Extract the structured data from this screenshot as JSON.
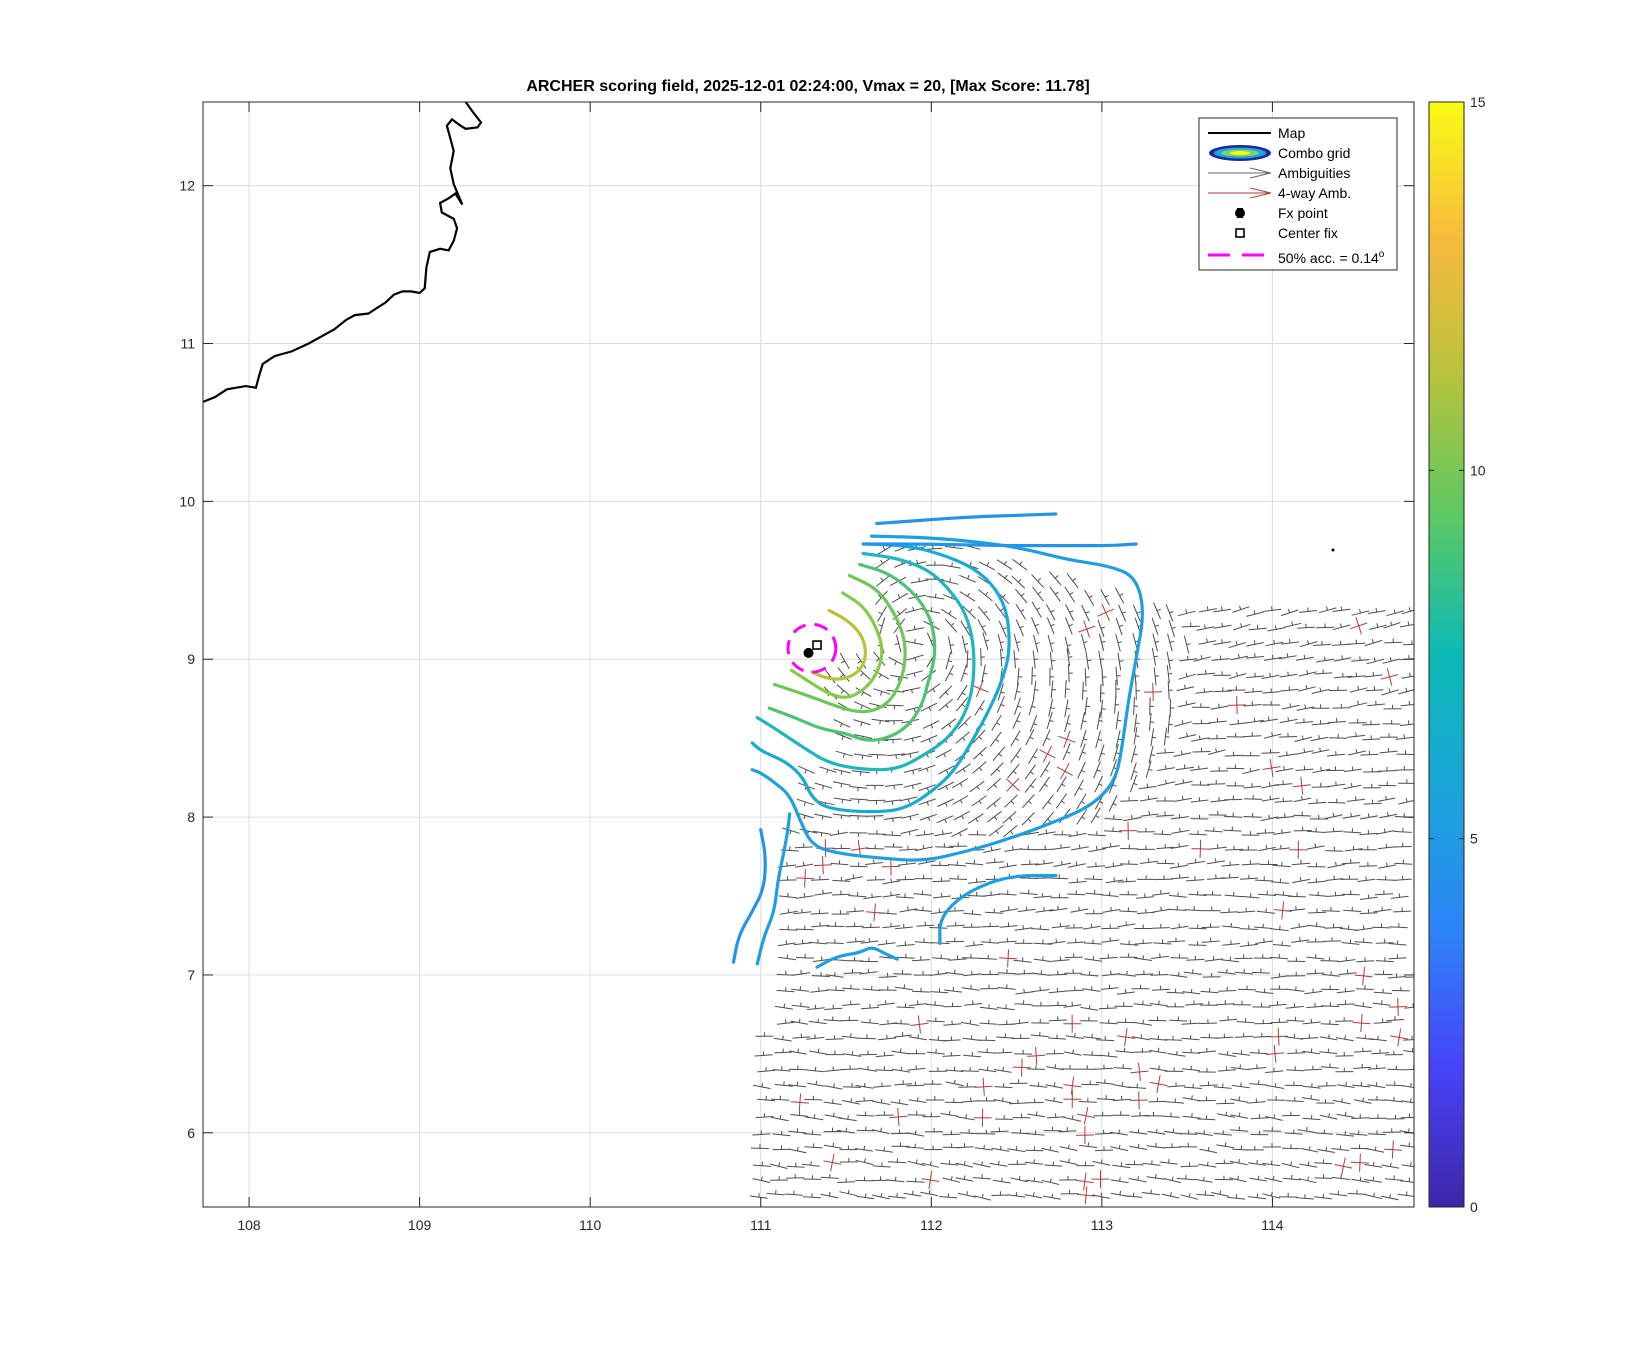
{
  "chart_data": {
    "type": "contour",
    "title": "ARCHER scoring field, 2025-12-01 02:24:00, Vmax = 20, [Max Score: 11.78]",
    "xlabel": "",
    "ylabel": "",
    "xlim": [
      107.73,
      114.83
    ],
    "ylim": [
      5.53,
      12.53
    ],
    "x_ticks": [
      "108",
      "109",
      "110",
      "111",
      "112",
      "113",
      "114"
    ],
    "y_ticks": [
      "6",
      "7",
      "8",
      "9",
      "10",
      "11",
      "12"
    ],
    "grid": true,
    "colorbar": {
      "range": [
        0,
        15
      ],
      "ticks": [
        "0",
        "5",
        "10",
        "15"
      ],
      "colormap": "parula",
      "stops": [
        "#3e26a8",
        "#4743f8",
        "#2c84f9",
        "#1ba5d9",
        "#0bbab5",
        "#5cc863",
        "#b6c33b",
        "#f7ba3d",
        "#f9fb15"
      ]
    },
    "legend": {
      "position": "top-right",
      "entries": [
        "Map",
        "Combo grid",
        "Ambiguities",
        "4-way Amb.",
        "Fx point",
        "Center fix",
        "50% acc. = 0.14",
        "o"
      ]
    },
    "fx_point": [
      111.28,
      9.04
    ],
    "center_fix": [
      111.33,
      9.09
    ],
    "accuracy_circle": {
      "center": [
        111.3,
        9.07
      ],
      "radius_deg": 0.14,
      "color": "#ff00ff"
    },
    "coastline": [
      [
        107.73,
        10.63
      ],
      [
        107.8,
        10.66
      ],
      [
        107.87,
        10.71
      ],
      [
        107.98,
        10.73
      ],
      [
        108.04,
        10.72
      ],
      [
        108.06,
        10.8
      ],
      [
        108.08,
        10.87
      ],
      [
        108.15,
        10.92
      ],
      [
        108.25,
        10.95
      ],
      [
        108.35,
        11.0
      ],
      [
        108.5,
        11.09
      ],
      [
        108.57,
        11.15
      ],
      [
        108.62,
        11.18
      ],
      [
        108.7,
        11.19
      ],
      [
        108.8,
        11.26
      ],
      [
        108.85,
        11.31
      ],
      [
        108.9,
        11.33
      ],
      [
        108.95,
        11.33
      ],
      [
        109.0,
        11.32
      ],
      [
        109.03,
        11.35
      ],
      [
        109.04,
        11.48
      ],
      [
        109.06,
        11.58
      ],
      [
        109.12,
        11.6
      ],
      [
        109.17,
        11.59
      ],
      [
        109.2,
        11.65
      ],
      [
        109.22,
        11.73
      ],
      [
        109.2,
        11.79
      ],
      [
        109.13,
        11.83
      ],
      [
        109.12,
        11.89
      ],
      [
        109.17,
        11.92
      ],
      [
        109.21,
        11.95
      ],
      [
        109.25,
        11.88
      ],
      [
        109.2,
        12.01
      ],
      [
        109.18,
        12.11
      ],
      [
        109.2,
        12.22
      ],
      [
        109.16,
        12.38
      ],
      [
        109.19,
        12.42
      ],
      [
        109.24,
        12.38
      ],
      [
        109.27,
        12.36
      ],
      [
        109.34,
        12.37
      ],
      [
        109.36,
        12.4
      ],
      [
        109.31,
        12.47
      ],
      [
        109.27,
        12.53
      ]
    ],
    "contours": [
      {
        "level": 10,
        "color": "#b6c33b",
        "points": [
          [
            111.4,
            9.31
          ],
          [
            111.52,
            9.24
          ],
          [
            111.6,
            9.14
          ],
          [
            111.62,
            9.02
          ],
          [
            111.58,
            8.92
          ],
          [
            111.48,
            8.87
          ],
          [
            111.38,
            8.88
          ],
          [
            111.3,
            8.92
          ]
        ]
      },
      {
        "level": 9,
        "color": "#86c94b",
        "points": [
          [
            111.48,
            9.42
          ],
          [
            111.6,
            9.34
          ],
          [
            111.68,
            9.2
          ],
          [
            111.72,
            9.05
          ],
          [
            111.68,
            8.9
          ],
          [
            111.6,
            8.8
          ],
          [
            111.5,
            8.75
          ],
          [
            111.4,
            8.78
          ],
          [
            111.28,
            8.86
          ],
          [
            111.18,
            8.93
          ]
        ]
      },
      {
        "level": 8.5,
        "color": "#6ec658",
        "points": [
          [
            111.52,
            9.53
          ],
          [
            111.68,
            9.45
          ],
          [
            111.78,
            9.3
          ],
          [
            111.84,
            9.15
          ],
          [
            111.85,
            9.0
          ],
          [
            111.82,
            8.85
          ],
          [
            111.75,
            8.72
          ],
          [
            111.63,
            8.66
          ],
          [
            111.5,
            8.68
          ],
          [
            111.35,
            8.74
          ],
          [
            111.22,
            8.79
          ],
          [
            111.08,
            8.84
          ]
        ]
      },
      {
        "level": 8,
        "color": "#4fc371",
        "points": [
          [
            111.58,
            9.6
          ],
          [
            111.74,
            9.55
          ],
          [
            111.88,
            9.44
          ],
          [
            111.98,
            9.3
          ],
          [
            112.02,
            9.15
          ],
          [
            112.02,
            9.0
          ],
          [
            111.98,
            8.85
          ],
          [
            111.95,
            8.72
          ],
          [
            111.87,
            8.58
          ],
          [
            111.75,
            8.5
          ],
          [
            111.62,
            8.48
          ],
          [
            111.5,
            8.53
          ],
          [
            111.35,
            8.56
          ],
          [
            111.2,
            8.63
          ],
          [
            111.05,
            8.69
          ]
        ]
      },
      {
        "level": 7,
        "color": "#1eb5c0",
        "points": [
          [
            111.6,
            9.67
          ],
          [
            111.8,
            9.64
          ],
          [
            111.98,
            9.57
          ],
          [
            112.1,
            9.45
          ],
          [
            112.2,
            9.3
          ],
          [
            112.25,
            9.1
          ],
          [
            112.25,
            8.85
          ],
          [
            112.2,
            8.65
          ],
          [
            112.1,
            8.5
          ],
          [
            111.97,
            8.4
          ],
          [
            111.8,
            8.3
          ],
          [
            111.6,
            8.3
          ],
          [
            111.4,
            8.34
          ],
          [
            111.25,
            8.44
          ],
          [
            111.1,
            8.55
          ],
          [
            110.98,
            8.63
          ]
        ]
      },
      {
        "level": 6.5,
        "color": "#17aad2",
        "points": [
          [
            111.62,
            9.73
          ],
          [
            111.85,
            9.72
          ],
          [
            112.05,
            9.67
          ],
          [
            112.25,
            9.58
          ],
          [
            112.38,
            9.45
          ],
          [
            112.45,
            9.28
          ],
          [
            112.46,
            9.05
          ],
          [
            112.42,
            8.88
          ],
          [
            112.35,
            8.7
          ],
          [
            112.25,
            8.5
          ],
          [
            112.15,
            8.32
          ],
          [
            112.05,
            8.2
          ],
          [
            111.85,
            8.05
          ],
          [
            111.65,
            8.03
          ],
          [
            111.4,
            8.05
          ],
          [
            111.3,
            8.12
          ],
          [
            111.25,
            8.25
          ],
          [
            111.15,
            8.35
          ],
          [
            111.0,
            8.42
          ],
          [
            110.95,
            8.47
          ]
        ]
      },
      {
        "level": 6,
        "color": "#1f9fdf",
        "points": [
          [
            111.65,
            9.78
          ],
          [
            112.0,
            9.77
          ],
          [
            112.3,
            9.74
          ],
          [
            112.55,
            9.7
          ],
          [
            112.8,
            9.63
          ],
          [
            113.05,
            9.59
          ],
          [
            113.2,
            9.52
          ],
          [
            113.25,
            9.3
          ],
          [
            113.2,
            9.0
          ],
          [
            113.15,
            8.7
          ],
          [
            113.12,
            8.45
          ],
          [
            113.08,
            8.23
          ],
          [
            112.95,
            8.08
          ],
          [
            112.75,
            7.98
          ],
          [
            112.45,
            7.86
          ],
          [
            112.2,
            7.78
          ],
          [
            111.95,
            7.72
          ],
          [
            111.7,
            7.74
          ],
          [
            111.45,
            7.77
          ],
          [
            111.3,
            7.82
          ],
          [
            111.23,
            7.98
          ],
          [
            111.17,
            8.14
          ],
          [
            111.08,
            8.22
          ],
          [
            111.0,
            8.28
          ],
          [
            110.95,
            8.3
          ]
        ]
      },
      {
        "level": 5.5,
        "color": "#2594e8",
        "points": [
          [
            111.68,
            9.86
          ],
          [
            111.95,
            9.88
          ],
          [
            112.2,
            9.9
          ],
          [
            112.45,
            9.91
          ],
          [
            112.73,
            9.92
          ]
        ]
      },
      {
        "level": 5.5,
        "color": "#2594e8",
        "points": [
          [
            111.6,
            9.73
          ],
          [
            112.0,
            9.73
          ],
          [
            112.4,
            9.72
          ],
          [
            112.8,
            9.72
          ],
          [
            113.05,
            9.72
          ],
          [
            113.2,
            9.73
          ]
        ]
      },
      {
        "level": 5.5,
        "color": "#2594e8",
        "points": [
          [
            111.0,
            7.92
          ],
          [
            111.03,
            7.75
          ],
          [
            111.02,
            7.55
          ],
          [
            110.95,
            7.4
          ],
          [
            110.87,
            7.25
          ],
          [
            110.84,
            7.08
          ]
        ]
      },
      {
        "level": 6,
        "color": "#1f9fdf",
        "points": [
          [
            111.17,
            8.02
          ],
          [
            111.15,
            7.85
          ],
          [
            111.1,
            7.6
          ],
          [
            111.08,
            7.4
          ],
          [
            111.02,
            7.25
          ],
          [
            110.98,
            7.07
          ]
        ]
      },
      {
        "level": 6,
        "color": "#1f9fdf",
        "points": [
          [
            112.05,
            7.2
          ],
          [
            112.05,
            7.35
          ],
          [
            112.15,
            7.48
          ],
          [
            112.32,
            7.58
          ],
          [
            112.5,
            7.63
          ],
          [
            112.73,
            7.63
          ]
        ]
      },
      {
        "level": 6,
        "color": "#1f9fdf",
        "points": [
          [
            111.33,
            7.05
          ],
          [
            111.45,
            7.12
          ],
          [
            111.58,
            7.14
          ],
          [
            111.65,
            7.18
          ],
          [
            111.72,
            7.14
          ],
          [
            111.8,
            7.1
          ]
        ]
      }
    ],
    "wind_field": {
      "region_x": [
        110.9,
        114.83
      ],
      "region_y": [
        5.6,
        9.75
      ],
      "four_way_color": "#b33a3a",
      "ambiguity_color": "#4d4d4d"
    }
  }
}
